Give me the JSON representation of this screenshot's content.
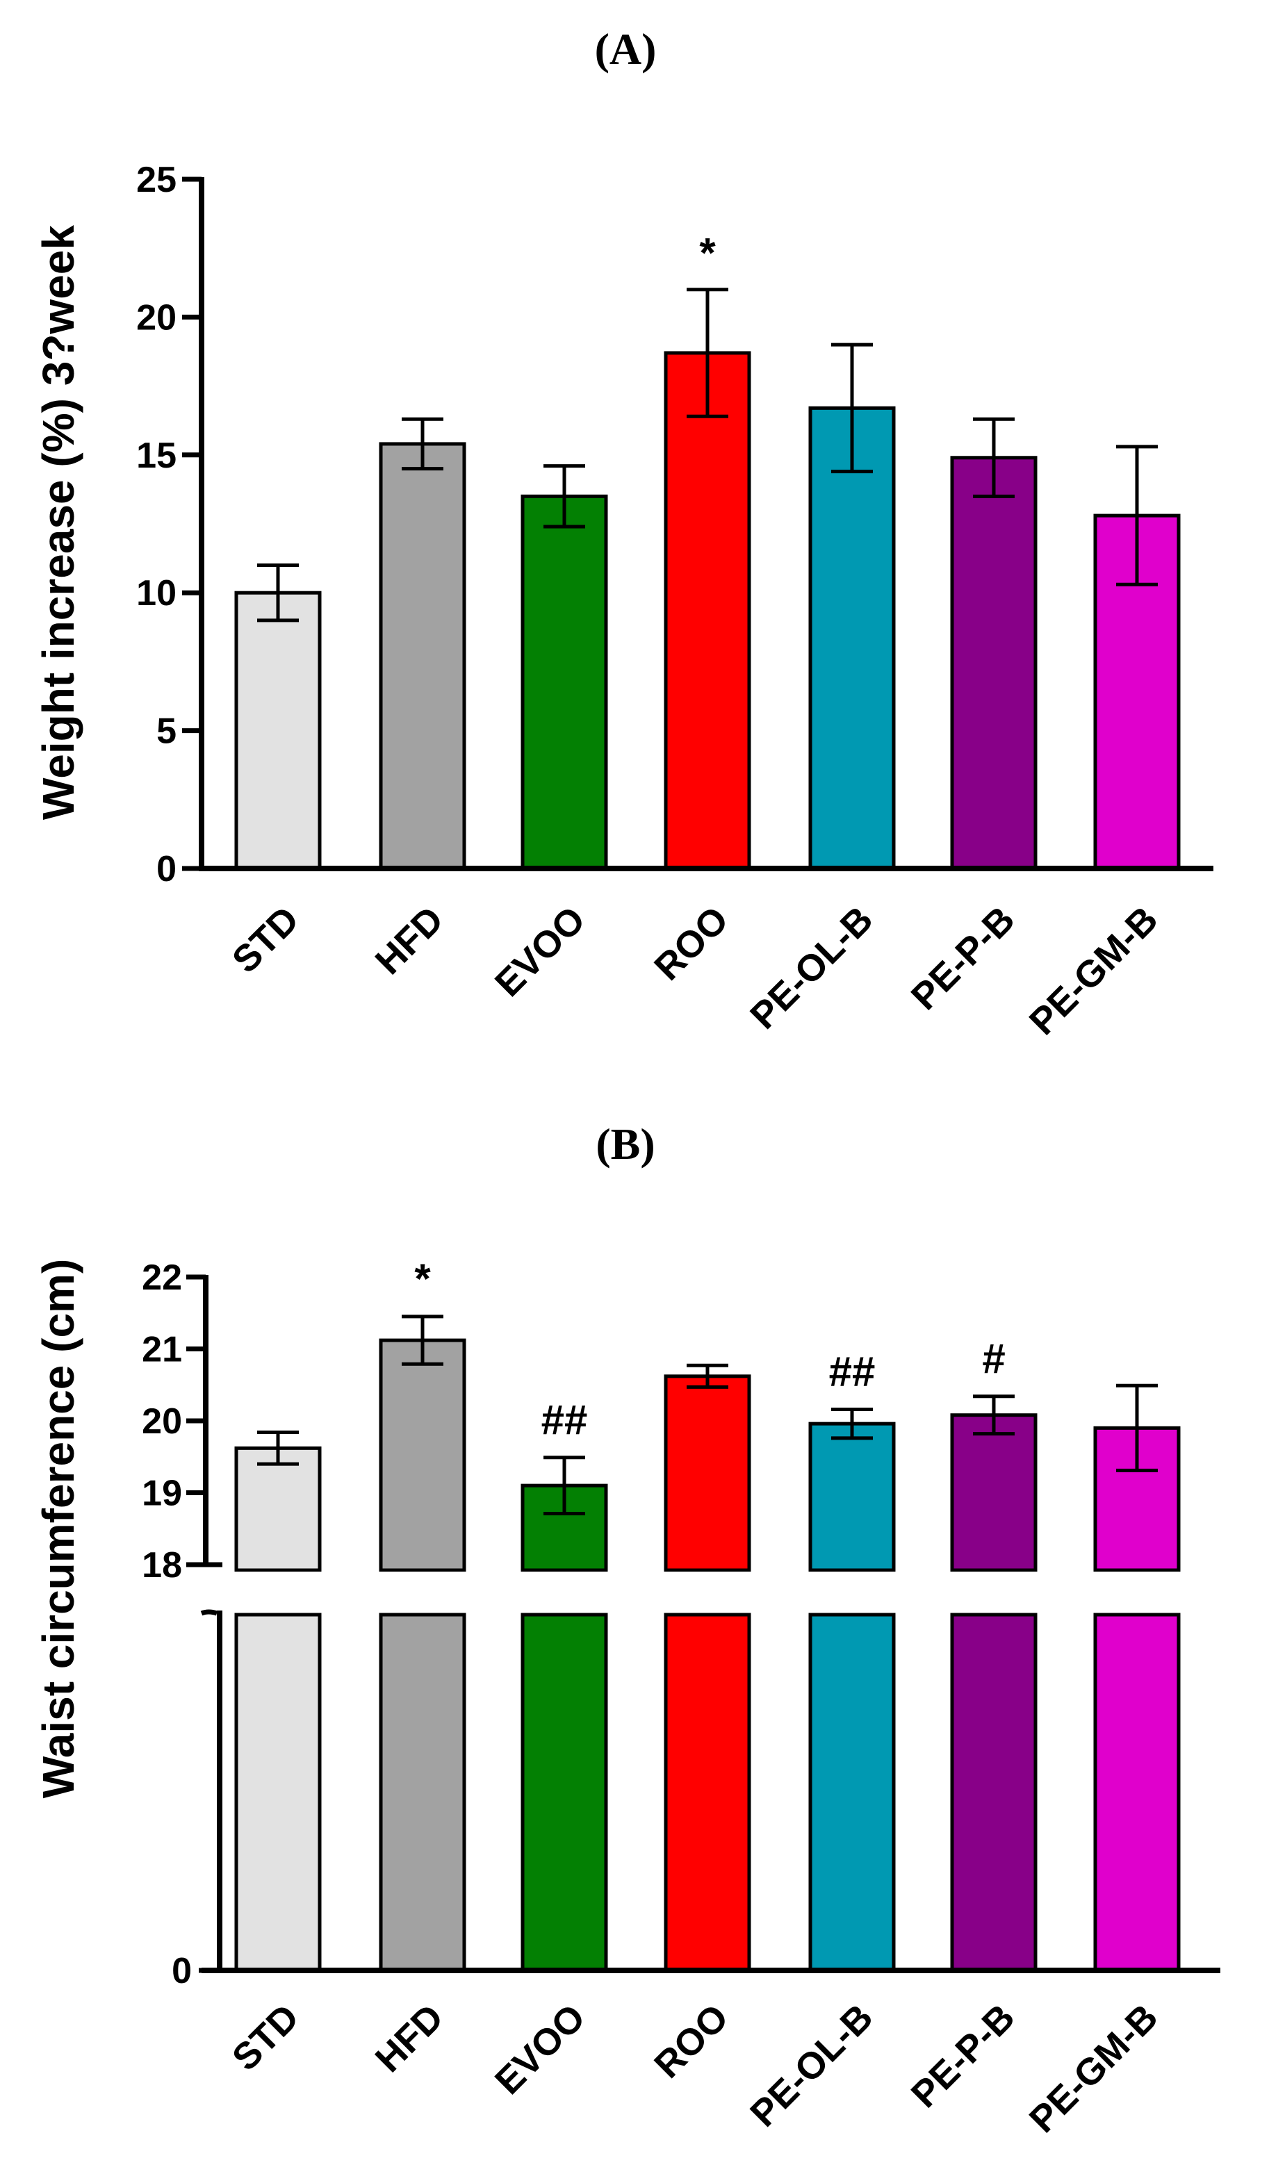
{
  "chart_data": [
    {
      "panel_label": "(A)",
      "type": "bar",
      "categories": [
        "STD",
        "HFD",
        "EVOO",
        "ROO",
        "PE-OL-B",
        "PE-P-B",
        "PE-GM-B"
      ],
      "values": [
        10.0,
        15.4,
        13.5,
        18.7,
        16.7,
        14.9,
        12.8
      ],
      "errors": [
        1.0,
        0.9,
        1.1,
        2.3,
        2.3,
        1.4,
        2.5
      ],
      "annotations": [
        "",
        "",
        "",
        "*",
        "",
        "",
        ""
      ],
      "colors": [
        "#e2e2e2",
        "#a2a2a2",
        "#038003",
        "#ff0000",
        "#0099b2",
        "#880088",
        "#e000cc"
      ],
      "ylabel": "Weight increase (%) 3?week",
      "ylim": [
        0,
        25
      ],
      "yticks": [
        "0",
        "5",
        "10",
        "15",
        "20",
        "25"
      ],
      "grid": false,
      "legend": "none"
    },
    {
      "panel_label": "(B)",
      "type": "bar",
      "categories": [
        "STD",
        "HFD",
        "EVOO",
        "ROO",
        "PE-OL-B",
        "PE-P-B",
        "PE-GM-B"
      ],
      "values": [
        19.62,
        21.12,
        19.1,
        20.62,
        19.96,
        20.08,
        19.9
      ],
      "errors": [
        0.22,
        0.33,
        0.39,
        0.15,
        0.2,
        0.26,
        0.59
      ],
      "annotations": [
        "",
        "*",
        "##",
        "",
        "##",
        "#",
        ""
      ],
      "colors": [
        "#e2e2e2",
        "#a2a2a2",
        "#038003",
        "#ff0000",
        "#0099b2",
        "#880088",
        "#e000cc"
      ],
      "ylabel": "Waist circumference (cm)",
      "ylim": [
        18,
        22
      ],
      "yticks": [
        "18",
        "19",
        "20",
        "21",
        "22"
      ],
      "axis_break": {
        "lower_segment_tick": "0",
        "break_between": [
          0,
          18
        ]
      },
      "grid": false,
      "legend": "none"
    }
  ]
}
